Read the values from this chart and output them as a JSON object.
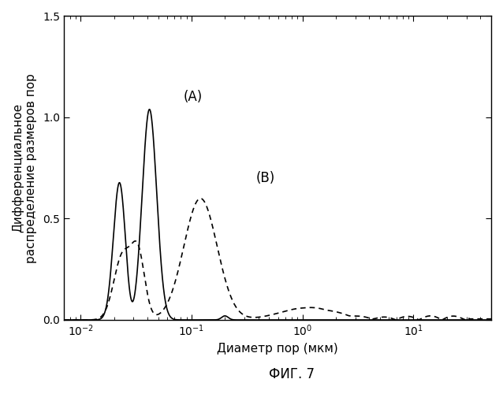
{
  "title": "",
  "xlabel": "Диаметр пор (мкм)",
  "ylabel": "Дифференциальное\nраспределение размеров пор",
  "fig_label": "ФИГ. 7",
  "label_A": "(A)",
  "label_B": "(B)",
  "xlim_log": [
    -2.15,
    1.7
  ],
  "ylim": [
    0.0,
    1.5
  ],
  "yticks": [
    0.0,
    0.5,
    1.0,
    1.5
  ],
  "background_color": "#ffffff",
  "line_color": "#000000",
  "figsize": [
    6.38,
    5.0
  ],
  "dpi": 100
}
